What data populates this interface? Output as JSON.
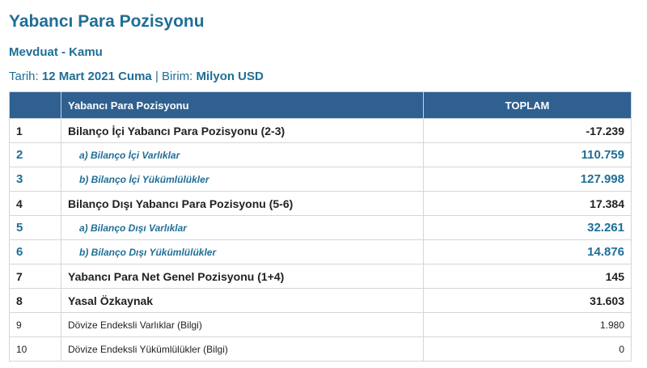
{
  "title": "Yabancı Para Pozisyonu",
  "subtitle": "Mevduat - Kamu",
  "meta": {
    "date_label": "Tarih:",
    "date": "12 Mart 2021 Cuma",
    "sep": "|",
    "unit_label": "Birim:",
    "unit": "Milyon USD"
  },
  "table": {
    "headers": [
      "",
      "Yabancı Para Pozisyonu",
      "TOPLAM"
    ],
    "rows": [
      {
        "no": "1",
        "label": "Bilanço İçi Yabancı Para Pozisyonu (2-3)",
        "value": "-17.239",
        "style": "bold"
      },
      {
        "no": "2",
        "label": "a) Bilanço İçi Varlıklar",
        "value": "110.759",
        "style": "sub"
      },
      {
        "no": "3",
        "label": "b) Bilanço İçi Yükümlülükler",
        "value": "127.998",
        "style": "sub"
      },
      {
        "no": "4",
        "label": "Bilanço Dışı Yabancı Para Pozisyonu (5-6)",
        "value": "17.384",
        "style": "bold"
      },
      {
        "no": "5",
        "label": "a) Bilanço Dışı Varlıklar",
        "value": "32.261",
        "style": "sub"
      },
      {
        "no": "6",
        "label": "b) Bilanço Dışı Yükümlülükler",
        "value": "14.876",
        "style": "sub"
      },
      {
        "no": "7",
        "label": "Yabancı Para Net Genel Pozisyonu (1+4)",
        "value": "145",
        "style": "bold"
      },
      {
        "no": "8",
        "label": "Yasal Özkaynak",
        "value": "31.603",
        "style": "bold"
      },
      {
        "no": "9",
        "label": "Dövize Endeksli Varlıklar (Bilgi)",
        "value": "1.980",
        "style": "plain"
      },
      {
        "no": "10",
        "label": "Dövize Endeksli Yükümlülükler (Bilgi)",
        "value": "0",
        "style": "plain"
      }
    ]
  }
}
